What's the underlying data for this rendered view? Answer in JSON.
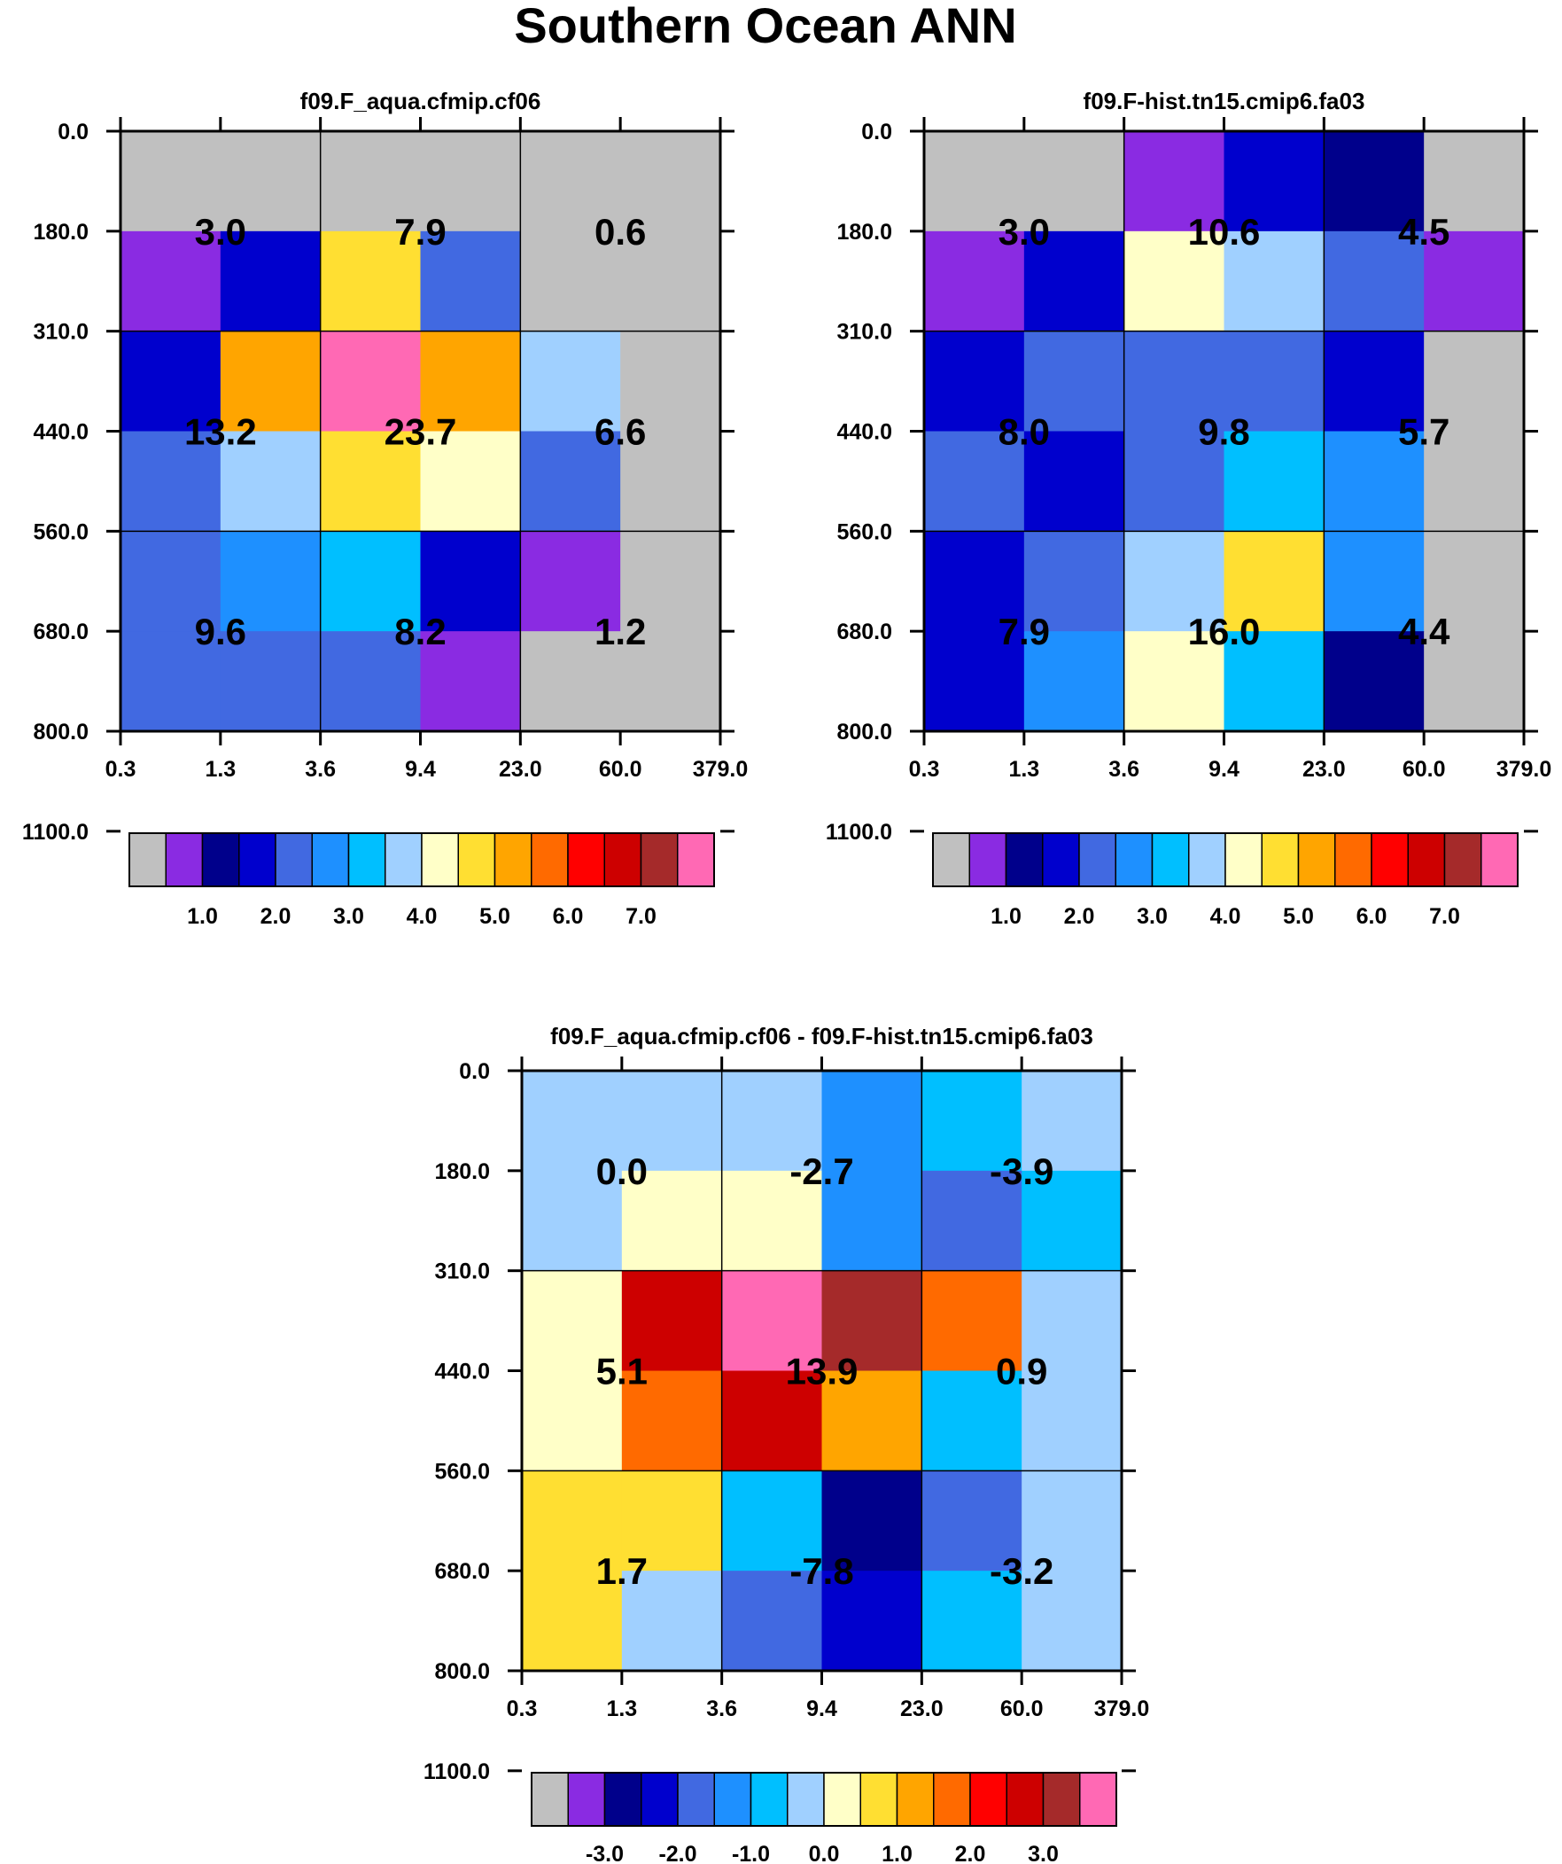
{
  "title": "Southern Ocean ANN",
  "y_tick_labels": [
    "0.0",
    "180.0",
    "310.0",
    "440.0",
    "560.0",
    "680.0",
    "800.0",
    "1100.0"
  ],
  "x_tick_labels": [
    "0.3",
    "1.3",
    "3.6",
    "9.4",
    "23.0",
    "60.0",
    "379.0"
  ],
  "colors": {
    "gray": "#c0c0c0",
    "purple": "#8a2be2",
    "navy": "#00008b",
    "mediumblue": "#0000cd",
    "royalblue": "#4169e1",
    "dodgerblue": "#1e90ff",
    "deepskyblue": "#00bfff",
    "lightskyblue": "#a0d0ff",
    "lightyellow": "#ffffc8",
    "gold": "#ffdf32",
    "orange": "#ffa500",
    "darkorange": "#ff6a00",
    "red": "#ff0000",
    "crimson": "#cd0000",
    "brown": "#a52a2a",
    "pink": "#ff69b4"
  },
  "colorbar_palette": [
    "gray",
    "purple",
    "navy",
    "mediumblue",
    "royalblue",
    "dodgerblue",
    "deepskyblue",
    "lightskyblue",
    "lightyellow",
    "gold",
    "orange",
    "darkorange",
    "red",
    "crimson",
    "brown",
    "pink"
  ],
  "chart_data": [
    {
      "type": "heatmap",
      "title": "f09.F_aqua.cfmip.cf06",
      "x": [
        "0.3",
        "1.3",
        "3.6",
        "9.4",
        "23.0",
        "60.0",
        "379.0"
      ],
      "y": [
        "0.0",
        "180.0",
        "310.0",
        "440.0",
        "560.0",
        "680.0",
        "800.0",
        "1100.0"
      ],
      "cell_colors": [
        [
          "gray",
          "gray",
          "gray",
          "gray",
          "gray",
          "gray"
        ],
        [
          "purple",
          "mediumblue",
          "gold",
          "royalblue",
          "gray",
          "gray"
        ],
        [
          "mediumblue",
          "orange",
          "pink",
          "orange",
          "lightskyblue",
          "gray"
        ],
        [
          "royalblue",
          "lightskyblue",
          "gold",
          "lightyellow",
          "royalblue",
          "gray"
        ],
        [
          "royalblue",
          "dodgerblue",
          "deepskyblue",
          "mediumblue",
          "purple",
          "gray"
        ],
        [
          "royalblue",
          "royalblue",
          "royalblue",
          "purple",
          "gray",
          "gray"
        ]
      ],
      "summary_values": [
        [
          "3.0",
          "7.9",
          "0.6"
        ],
        [
          "13.2",
          "23.7",
          "6.6"
        ],
        [
          "9.6",
          "8.2",
          "1.2"
        ]
      ],
      "colorbar_labels": [
        "1.0",
        "2.0",
        "3.0",
        "4.0",
        "5.0",
        "6.0",
        "7.0"
      ],
      "colorbar_label_boundary_start": 2
    },
    {
      "type": "heatmap",
      "title": "f09.F-hist.tn15.cmip6.fa03",
      "x": [
        "0.3",
        "1.3",
        "3.6",
        "9.4",
        "23.0",
        "60.0",
        "379.0"
      ],
      "y": [
        "0.0",
        "180.0",
        "310.0",
        "440.0",
        "560.0",
        "680.0",
        "800.0",
        "1100.0"
      ],
      "cell_colors": [
        [
          "gray",
          "gray",
          "purple",
          "mediumblue",
          "navy",
          "gray"
        ],
        [
          "purple",
          "mediumblue",
          "lightyellow",
          "lightskyblue",
          "royalblue",
          "purple"
        ],
        [
          "mediumblue",
          "royalblue",
          "royalblue",
          "royalblue",
          "mediumblue",
          "gray"
        ],
        [
          "royalblue",
          "mediumblue",
          "royalblue",
          "deepskyblue",
          "dodgerblue",
          "gray"
        ],
        [
          "mediumblue",
          "royalblue",
          "lightskyblue",
          "gold",
          "dodgerblue",
          "gray"
        ],
        [
          "mediumblue",
          "dodgerblue",
          "lightyellow",
          "deepskyblue",
          "navy",
          "gray"
        ]
      ],
      "summary_values": [
        [
          "3.0",
          "10.6",
          "4.5"
        ],
        [
          "8.0",
          "9.8",
          "5.7"
        ],
        [
          "7.9",
          "16.0",
          "4.4"
        ]
      ],
      "colorbar_labels": [
        "1.0",
        "2.0",
        "3.0",
        "4.0",
        "5.0",
        "6.0",
        "7.0"
      ],
      "colorbar_label_boundary_start": 2
    },
    {
      "type": "heatmap",
      "title": "f09.F_aqua.cfmip.cf06 - f09.F-hist.tn15.cmip6.fa03",
      "x": [
        "0.3",
        "1.3",
        "3.6",
        "9.4",
        "23.0",
        "60.0",
        "379.0"
      ],
      "y": [
        "0.0",
        "180.0",
        "310.0",
        "440.0",
        "560.0",
        "680.0",
        "800.0",
        "1100.0"
      ],
      "cell_colors": [
        [
          "lightskyblue",
          "lightskyblue",
          "lightskyblue",
          "dodgerblue",
          "deepskyblue",
          "lightskyblue"
        ],
        [
          "lightskyblue",
          "lightyellow",
          "lightyellow",
          "dodgerblue",
          "royalblue",
          "deepskyblue"
        ],
        [
          "lightyellow",
          "crimson",
          "pink",
          "brown",
          "darkorange",
          "lightskyblue"
        ],
        [
          "lightyellow",
          "darkorange",
          "crimson",
          "orange",
          "deepskyblue",
          "lightskyblue"
        ],
        [
          "gold",
          "gold",
          "deepskyblue",
          "navy",
          "royalblue",
          "lightskyblue"
        ],
        [
          "gold",
          "lightskyblue",
          "royalblue",
          "mediumblue",
          "deepskyblue",
          "lightskyblue"
        ]
      ],
      "summary_values": [
        [
          "0.0",
          "-2.7",
          "-3.9"
        ],
        [
          "5.1",
          "13.9",
          "0.9"
        ],
        [
          "1.7",
          "-7.8",
          "-3.2"
        ]
      ],
      "colorbar_labels": [
        "-3.0",
        "-2.0",
        "-1.0",
        "0.0",
        "1.0",
        "2.0",
        "3.0"
      ],
      "colorbar_label_boundary_start": 2
    }
  ]
}
